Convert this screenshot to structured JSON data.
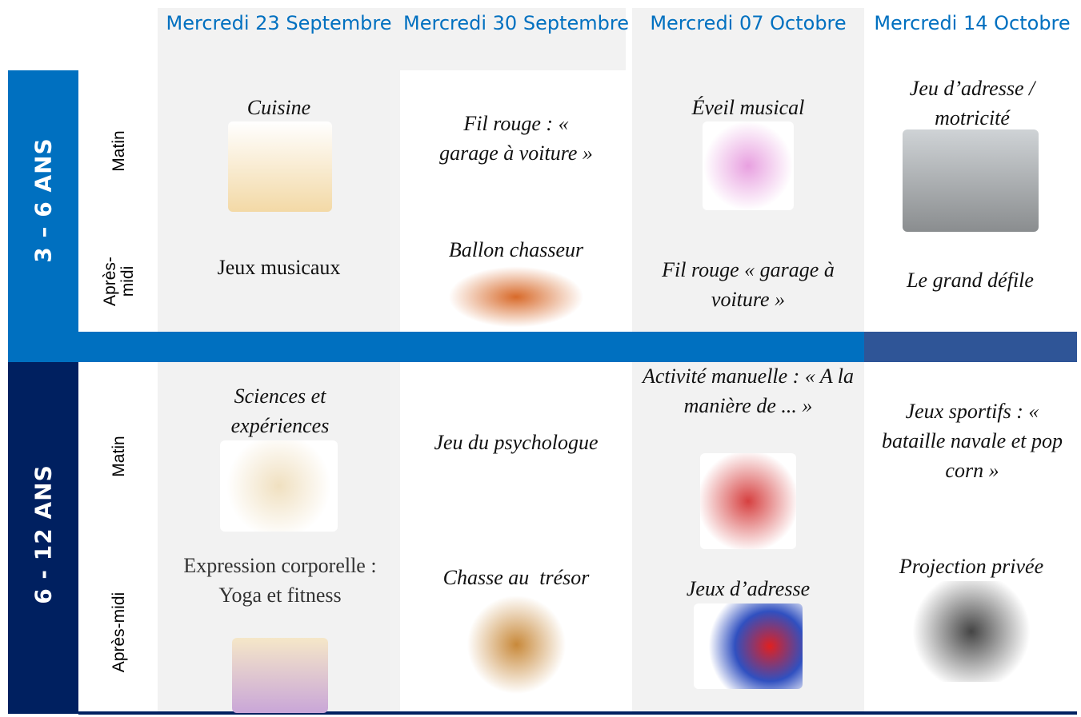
{
  "header": {
    "days": [
      "Mercredi 23 Septembre",
      "Mercredi 30 Septembre",
      "Mercredi 07 Octobre",
      "Mercredi 14 Octobre"
    ]
  },
  "sections": [
    {
      "age": "3 – 6 ANS",
      "periods": [
        "Matin",
        "Après-midi"
      ],
      "rows": [
        [
          "Cuisine",
          "Fil rouge : « garage à voiture »",
          "Éveil musical",
          "Jeu d’adresse / motricité"
        ],
        [
          "Jeux musicaux",
          "Ballon chasseur",
          "Fil rouge « garage à voiture »",
          "Le grand défile"
        ]
      ]
    },
    {
      "age": "6 - 12 ANS",
      "periods": [
        "Matin",
        "Après-midi"
      ],
      "rows": [
        [
          "Sciences et expériences",
          "Jeu du psychologue",
          "Activité manuelle : « A la manière de ... »",
          "Jeux sportifs : « bataille navale et pop corn »"
        ],
        [
          "Expression corporelle : Yoga et fitness",
          "Chasse au  trésor",
          "Jeux d’adresse",
          "Projection privée"
        ]
      ]
    }
  ]
}
